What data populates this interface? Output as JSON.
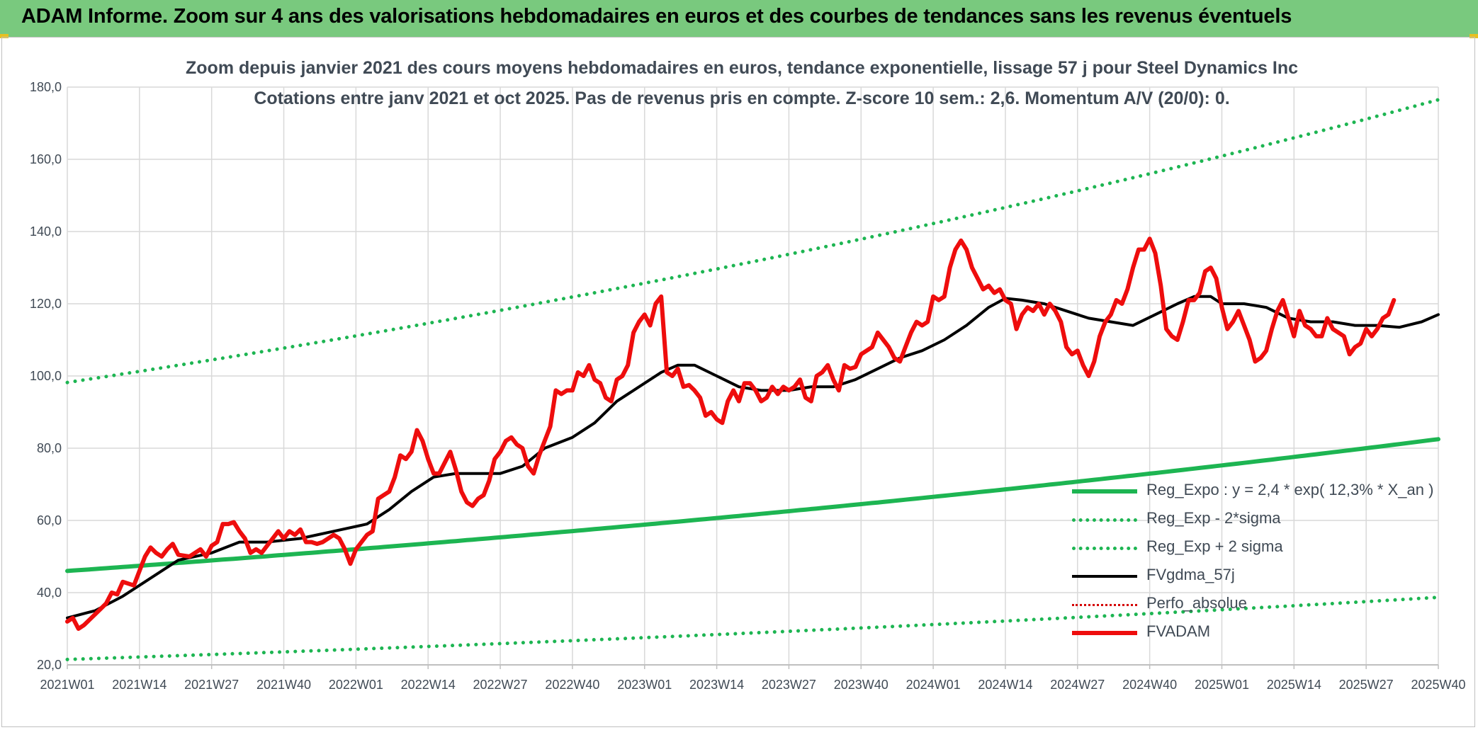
{
  "banner": {
    "title": "ADAM Informe. Zoom sur 4 ans des valorisations hebdomadaires en euros et des courbes de tendances sans les revenus éventuels"
  },
  "colors": {
    "banner_bg": "#79c97e",
    "reg_expo": "#1db552",
    "fvgdma": "#000000",
    "fvadam": "#ee0d0d",
    "perfo": "#d40000",
    "grid": "#d9d9d9"
  },
  "chart_data": {
    "type": "line",
    "title": "Zoom depuis janvier 2021 des cours moyens hebdomadaires en euros, tendance exponentielle, lissage 57 j pour Steel Dynamics Inc",
    "subtitle": "Cotations entre janv 2021 et oct 2025. Pas de revenus pris en compte. Z-score 10 sem.: 2,6. Momentum A/V (20/0): 0.",
    "xlabel": "",
    "ylabel": "",
    "ylim": [
      20,
      180
    ],
    "yticks": [
      "20,0",
      "40,0",
      "60,0",
      "80,0",
      "100,0",
      "120,0",
      "140,0",
      "160,0",
      "180,0"
    ],
    "x_tick_labels": [
      "2021W01",
      "2021W14",
      "2021W27",
      "2021W40",
      "2022W01",
      "2022W14",
      "2022W27",
      "2022W40",
      "2023W01",
      "2023W14",
      "2023W27",
      "2023W40",
      "2024W01",
      "2024W14",
      "2024W27",
      "2024W40",
      "2025W01",
      "2025W14",
      "2025W27",
      "2025W40"
    ],
    "x_tick_weeks": [
      0,
      13,
      26,
      39,
      52,
      65,
      78,
      91,
      104,
      117,
      130,
      143,
      156,
      169,
      182,
      195,
      208,
      221,
      234,
      247
    ],
    "xlim": [
      0,
      247
    ],
    "grid": true,
    "legend_position": "bottom-right",
    "series": [
      {
        "name": "Reg_Expo : y = 2,4 * exp( 12,3% *  X_an )",
        "style": "solid",
        "key": "reg_expo",
        "formula": "exp",
        "start": 46.0,
        "end": 82.5
      },
      {
        "name": "Reg_Exp - 2*sigma",
        "style": "dotted",
        "key": "reg_low",
        "formula": "exp",
        "start": 21.5,
        "end": 38.7
      },
      {
        "name": "Reg_Exp + 2 sigma",
        "style": "dotted",
        "key": "reg_high",
        "formula": "exp",
        "start": 98.2,
        "end": 176.5
      },
      {
        "name": "FVgdma_57j",
        "style": "solid",
        "key": "fvgdma",
        "points": [
          [
            0,
            33
          ],
          [
            5,
            35
          ],
          [
            10,
            39
          ],
          [
            15,
            44
          ],
          [
            20,
            49
          ],
          [
            26,
            51
          ],
          [
            31,
            54
          ],
          [
            36,
            54
          ],
          [
            42,
            55
          ],
          [
            48,
            57
          ],
          [
            54,
            59
          ],
          [
            58,
            63
          ],
          [
            62,
            68
          ],
          [
            66,
            72
          ],
          [
            70,
            73
          ],
          [
            74,
            73
          ],
          [
            78,
            73
          ],
          [
            82,
            75
          ],
          [
            86,
            80
          ],
          [
            91,
            83
          ],
          [
            95,
            87
          ],
          [
            99,
            93
          ],
          [
            103,
            97
          ],
          [
            107,
            101
          ],
          [
            110,
            103
          ],
          [
            113,
            103
          ],
          [
            117,
            100
          ],
          [
            121,
            97
          ],
          [
            125,
            96
          ],
          [
            130,
            96
          ],
          [
            134,
            97
          ],
          [
            138,
            97
          ],
          [
            142,
            99
          ],
          [
            146,
            102
          ],
          [
            150,
            105
          ],
          [
            154,
            107
          ],
          [
            158,
            110
          ],
          [
            162,
            114
          ],
          [
            166,
            119
          ],
          [
            169,
            121.5
          ],
          [
            172,
            121
          ],
          [
            176,
            120
          ],
          [
            180,
            118
          ],
          [
            184,
            116
          ],
          [
            188,
            115
          ],
          [
            192,
            114
          ],
          [
            196,
            117
          ],
          [
            200,
            120
          ],
          [
            203,
            122
          ],
          [
            206,
            122
          ],
          [
            208,
            120
          ],
          [
            212,
            120
          ],
          [
            216,
            119
          ],
          [
            220,
            116
          ],
          [
            224,
            115
          ],
          [
            228,
            115
          ],
          [
            232,
            114
          ],
          [
            236,
            114
          ],
          [
            240,
            113.5
          ],
          [
            244,
            115
          ],
          [
            247,
            117
          ]
        ]
      },
      {
        "name": "Perfo_absolue",
        "style": "dotted",
        "key": "perfo",
        "points": []
      },
      {
        "name": "FVADAM",
        "style": "solid",
        "key": "fvadam",
        "points": [
          [
            0,
            32
          ],
          [
            1,
            33
          ],
          [
            2,
            30
          ],
          [
            3,
            31
          ],
          [
            5,
            34
          ],
          [
            7,
            37
          ],
          [
            8,
            40
          ],
          [
            9,
            39.5
          ],
          [
            10,
            43
          ],
          [
            12,
            42
          ],
          [
            13,
            46
          ],
          [
            14,
            50
          ],
          [
            15,
            52.5
          ],
          [
            16,
            51
          ],
          [
            17,
            50
          ],
          [
            18,
            52
          ],
          [
            19,
            53.5
          ],
          [
            20,
            50.5
          ],
          [
            22,
            50
          ],
          [
            24,
            52
          ],
          [
            25,
            50
          ],
          [
            26,
            53
          ],
          [
            27,
            54
          ],
          [
            28,
            59
          ],
          [
            29,
            59
          ],
          [
            30,
            59.5
          ],
          [
            31,
            57
          ],
          [
            32,
            55
          ],
          [
            33,
            51
          ],
          [
            34,
            52
          ],
          [
            35,
            51
          ],
          [
            36,
            53
          ],
          [
            37,
            55
          ],
          [
            38,
            57
          ],
          [
            39,
            55
          ],
          [
            40,
            57
          ],
          [
            41,
            56
          ],
          [
            42,
            57.5
          ],
          [
            43,
            54
          ],
          [
            44,
            54
          ],
          [
            45,
            53.5
          ],
          [
            46,
            54
          ],
          [
            47,
            55
          ],
          [
            48,
            56
          ],
          [
            49,
            55
          ],
          [
            50,
            52
          ],
          [
            51,
            48
          ],
          [
            52,
            52
          ],
          [
            53,
            54
          ],
          [
            54,
            56
          ],
          [
            55,
            57
          ],
          [
            56,
            66
          ],
          [
            57,
            67
          ],
          [
            58,
            68
          ],
          [
            59,
            72
          ],
          [
            60,
            78
          ],
          [
            61,
            77
          ],
          [
            62,
            79
          ],
          [
            63,
            85
          ],
          [
            64,
            82
          ],
          [
            65,
            77
          ],
          [
            66,
            73
          ],
          [
            67,
            73
          ],
          [
            68,
            76
          ],
          [
            69,
            79
          ],
          [
            70,
            74
          ],
          [
            71,
            68
          ],
          [
            72,
            65
          ],
          [
            73,
            64
          ],
          [
            74,
            66
          ],
          [
            75,
            67
          ],
          [
            76,
            71
          ],
          [
            77,
            77
          ],
          [
            78,
            79
          ],
          [
            79,
            82
          ],
          [
            80,
            83
          ],
          [
            81,
            81
          ],
          [
            82,
            80
          ],
          [
            83,
            75
          ],
          [
            84,
            73
          ],
          [
            85,
            78
          ],
          [
            86,
            82
          ],
          [
            87,
            86
          ],
          [
            88,
            96
          ],
          [
            89,
            95
          ],
          [
            90,
            96
          ],
          [
            91,
            96
          ],
          [
            92,
            101
          ],
          [
            93,
            100
          ],
          [
            94,
            103
          ],
          [
            95,
            99
          ],
          [
            96,
            98
          ],
          [
            97,
            94
          ],
          [
            98,
            93
          ],
          [
            99,
            99
          ],
          [
            100,
            100
          ],
          [
            101,
            103
          ],
          [
            102,
            112
          ],
          [
            103,
            115
          ],
          [
            104,
            117
          ],
          [
            105,
            114
          ],
          [
            106,
            120
          ],
          [
            107,
            122
          ],
          [
            108,
            101
          ],
          [
            109,
            100
          ],
          [
            110,
            102
          ],
          [
            111,
            97
          ],
          [
            112,
            97.5
          ],
          [
            113,
            96
          ],
          [
            114,
            94
          ],
          [
            115,
            89
          ],
          [
            116,
            90
          ],
          [
            117,
            88
          ],
          [
            118,
            87
          ],
          [
            119,
            93
          ],
          [
            120,
            96
          ],
          [
            121,
            93
          ],
          [
            122,
            98
          ],
          [
            123,
            98
          ],
          [
            124,
            96
          ],
          [
            125,
            93
          ],
          [
            126,
            94
          ],
          [
            127,
            97
          ],
          [
            128,
            95
          ],
          [
            129,
            97
          ],
          [
            130,
            96
          ],
          [
            131,
            97
          ],
          [
            132,
            99
          ],
          [
            133,
            94
          ],
          [
            134,
            93
          ],
          [
            135,
            100
          ],
          [
            136,
            101
          ],
          [
            137,
            103
          ],
          [
            138,
            99
          ],
          [
            139,
            96
          ],
          [
            140,
            103
          ],
          [
            141,
            102
          ],
          [
            142,
            102.5
          ],
          [
            143,
            106
          ],
          [
            144,
            107
          ],
          [
            145,
            108
          ],
          [
            146,
            112
          ],
          [
            147,
            110
          ],
          [
            148,
            108
          ],
          [
            149,
            105
          ],
          [
            150,
            104
          ],
          [
            151,
            108
          ],
          [
            152,
            112
          ],
          [
            153,
            115
          ],
          [
            154,
            114
          ],
          [
            155,
            115
          ],
          [
            156,
            122
          ],
          [
            157,
            121
          ],
          [
            158,
            122
          ],
          [
            159,
            130
          ],
          [
            160,
            135
          ],
          [
            161,
            137.5
          ],
          [
            162,
            135
          ],
          [
            163,
            130
          ],
          [
            164,
            127
          ],
          [
            165,
            124
          ],
          [
            166,
            125
          ],
          [
            167,
            123
          ],
          [
            168,
            124
          ],
          [
            169,
            121
          ],
          [
            170,
            120
          ],
          [
            171,
            113
          ],
          [
            172,
            117
          ],
          [
            173,
            119
          ],
          [
            174,
            118
          ],
          [
            175,
            120
          ],
          [
            176,
            117
          ],
          [
            177,
            120
          ],
          [
            178,
            118
          ],
          [
            179,
            115
          ],
          [
            180,
            108
          ],
          [
            181,
            106
          ],
          [
            182,
            107
          ],
          [
            183,
            103
          ],
          [
            184,
            100
          ],
          [
            185,
            104
          ],
          [
            186,
            111
          ],
          [
            187,
            115
          ],
          [
            188,
            117
          ],
          [
            189,
            121
          ],
          [
            190,
            120
          ],
          [
            191,
            124
          ],
          [
            192,
            130
          ],
          [
            193,
            135
          ],
          [
            194,
            135
          ],
          [
            195,
            138
          ],
          [
            196,
            134
          ],
          [
            197,
            125
          ],
          [
            198,
            113
          ],
          [
            199,
            111
          ],
          [
            200,
            110
          ],
          [
            201,
            115
          ],
          [
            202,
            121
          ],
          [
            203,
            121
          ],
          [
            204,
            123
          ],
          [
            205,
            129
          ],
          [
            206,
            130
          ],
          [
            207,
            127
          ],
          [
            208,
            119
          ],
          [
            209,
            113
          ],
          [
            210,
            115
          ],
          [
            211,
            118
          ],
          [
            212,
            114
          ],
          [
            213,
            110
          ],
          [
            214,
            104
          ],
          [
            215,
            105
          ],
          [
            216,
            107
          ],
          [
            217,
            113
          ],
          [
            218,
            118
          ],
          [
            219,
            121
          ],
          [
            220,
            116
          ],
          [
            221,
            111
          ],
          [
            222,
            118
          ],
          [
            223,
            114
          ],
          [
            224,
            113
          ],
          [
            225,
            111
          ],
          [
            226,
            111
          ],
          [
            227,
            116
          ],
          [
            228,
            113
          ],
          [
            229,
            112
          ],
          [
            230,
            111
          ],
          [
            231,
            106
          ],
          [
            232,
            108
          ],
          [
            233,
            109
          ],
          [
            234,
            113
          ],
          [
            235,
            111
          ],
          [
            236,
            113
          ],
          [
            237,
            116
          ],
          [
            238,
            117
          ],
          [
            239,
            121
          ]
        ]
      }
    ]
  }
}
